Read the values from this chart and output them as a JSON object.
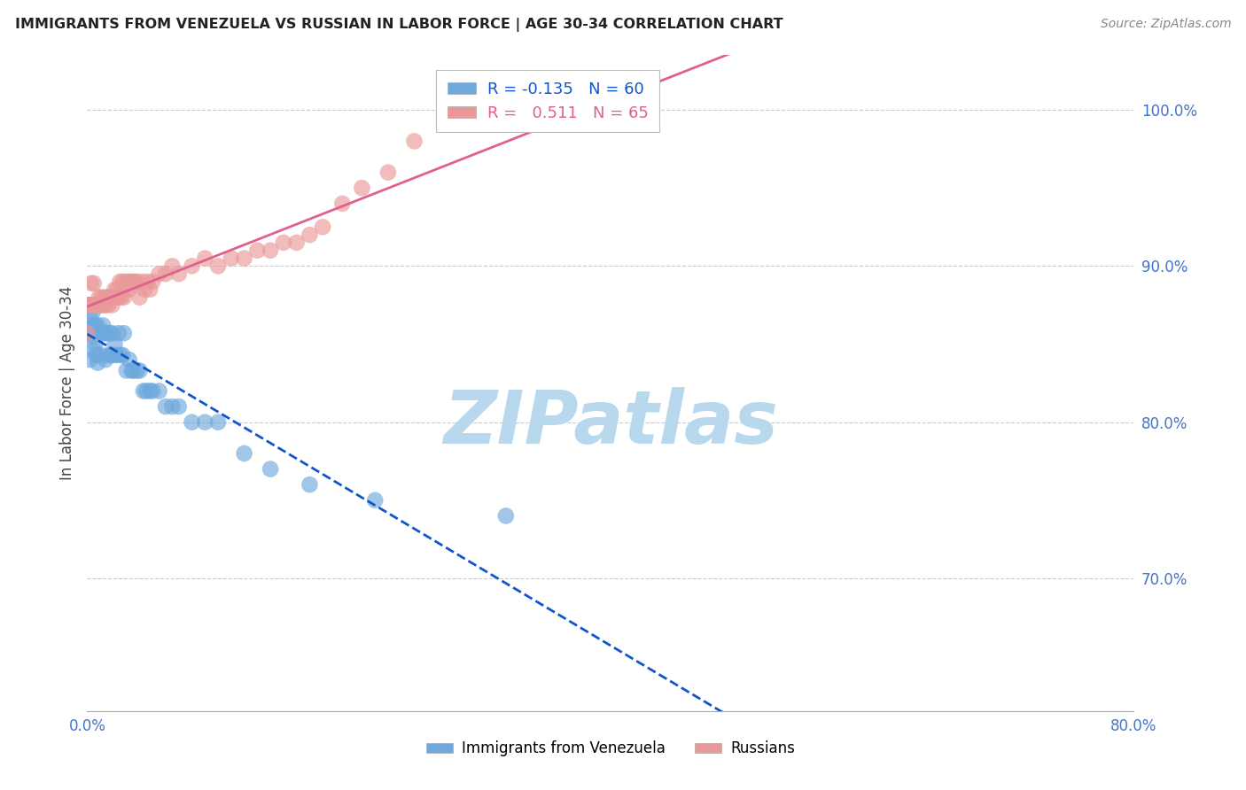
{
  "title": "IMMIGRANTS FROM VENEZUELA VS RUSSIAN IN LABOR FORCE | AGE 30-34 CORRELATION CHART",
  "source": "Source: ZipAtlas.com",
  "ylabel": "In Labor Force | Age 30-34",
  "ytick_vals": [
    0.7,
    0.8,
    0.9,
    1.0
  ],
  "ytick_labels": [
    "70.0%",
    "80.0%",
    "90.0%",
    "100.0%"
  ],
  "xtick_vals": [
    0.0,
    0.8
  ],
  "xtick_labels": [
    "0.0%",
    "80.0%"
  ],
  "xmin": 0.0,
  "xmax": 0.8,
  "ymin": 0.615,
  "ymax": 1.035,
  "r_venezuela": -0.135,
  "n_venezuela": 60,
  "r_russian": 0.511,
  "n_russian": 65,
  "color_venezuela": "#6fa8dc",
  "color_russian": "#ea9999",
  "trendline_venezuela": "#1155cc",
  "trendline_russian": "#e06090",
  "watermark_text": "ZIPatlas",
  "watermark_color": "#b8d8ee",
  "venezuela_x": [
    0.0,
    0.0,
    0.001,
    0.001,
    0.002,
    0.002,
    0.003,
    0.003,
    0.004,
    0.004,
    0.005,
    0.005,
    0.005,
    0.006,
    0.006,
    0.007,
    0.007,
    0.008,
    0.008,
    0.009,
    0.01,
    0.01,
    0.011,
    0.012,
    0.013,
    0.014,
    0.015,
    0.016,
    0.017,
    0.018,
    0.019,
    0.02,
    0.021,
    0.022,
    0.024,
    0.025,
    0.027,
    0.028,
    0.03,
    0.032,
    0.034,
    0.035,
    0.038,
    0.04,
    0.043,
    0.045,
    0.048,
    0.05,
    0.055,
    0.06,
    0.065,
    0.07,
    0.08,
    0.09,
    0.1,
    0.12,
    0.14,
    0.17,
    0.22,
    0.32
  ],
  "venezuela_y": [
    0.857,
    0.875,
    0.86,
    0.875,
    0.84,
    0.867,
    0.857,
    0.875,
    0.855,
    0.87,
    0.846,
    0.862,
    0.875,
    0.85,
    0.862,
    0.843,
    0.857,
    0.838,
    0.862,
    0.857,
    0.843,
    0.875,
    0.857,
    0.862,
    0.857,
    0.84,
    0.857,
    0.843,
    0.857,
    0.843,
    0.857,
    0.843,
    0.85,
    0.843,
    0.857,
    0.843,
    0.843,
    0.857,
    0.833,
    0.84,
    0.833,
    0.833,
    0.833,
    0.833,
    0.82,
    0.82,
    0.82,
    0.82,
    0.82,
    0.81,
    0.81,
    0.81,
    0.8,
    0.8,
    0.8,
    0.78,
    0.77,
    0.76,
    0.75,
    0.74
  ],
  "russian_x": [
    0.0,
    0.0,
    0.001,
    0.002,
    0.003,
    0.003,
    0.004,
    0.005,
    0.005,
    0.006,
    0.007,
    0.008,
    0.009,
    0.01,
    0.011,
    0.012,
    0.013,
    0.014,
    0.015,
    0.016,
    0.017,
    0.018,
    0.019,
    0.02,
    0.021,
    0.022,
    0.023,
    0.024,
    0.025,
    0.026,
    0.027,
    0.028,
    0.029,
    0.03,
    0.031,
    0.032,
    0.033,
    0.035,
    0.036,
    0.038,
    0.04,
    0.042,
    0.044,
    0.046,
    0.048,
    0.05,
    0.055,
    0.06,
    0.065,
    0.07,
    0.08,
    0.09,
    0.1,
    0.11,
    0.12,
    0.13,
    0.14,
    0.15,
    0.16,
    0.17,
    0.18,
    0.195,
    0.21,
    0.23,
    0.25
  ],
  "russian_y": [
    0.857,
    0.875,
    0.875,
    0.875,
    0.875,
    0.889,
    0.875,
    0.875,
    0.889,
    0.875,
    0.875,
    0.875,
    0.88,
    0.875,
    0.88,
    0.875,
    0.88,
    0.875,
    0.88,
    0.875,
    0.88,
    0.88,
    0.875,
    0.88,
    0.885,
    0.88,
    0.885,
    0.88,
    0.89,
    0.88,
    0.89,
    0.88,
    0.89,
    0.885,
    0.89,
    0.885,
    0.89,
    0.89,
    0.89,
    0.89,
    0.88,
    0.89,
    0.885,
    0.89,
    0.885,
    0.89,
    0.895,
    0.895,
    0.9,
    0.895,
    0.9,
    0.905,
    0.9,
    0.905,
    0.905,
    0.91,
    0.91,
    0.915,
    0.915,
    0.92,
    0.925,
    0.94,
    0.95,
    0.96,
    0.98
  ]
}
